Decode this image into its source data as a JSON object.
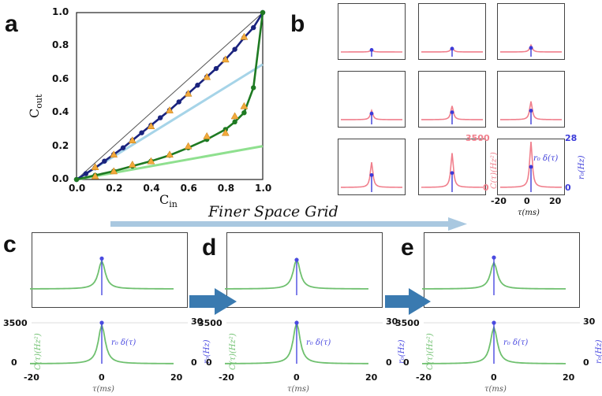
{
  "panel_labels": {
    "a": "a",
    "b": "b",
    "c": "c",
    "d": "d",
    "e": "e"
  },
  "banner": {
    "text": "Finer Space Grid"
  },
  "panel_a": {
    "xlabel": "C",
    "xlabel_sub": "in",
    "ylabel": "C",
    "ylabel_sub": "out",
    "xticks": [
      "0.0",
      "0.2",
      "0.4",
      "0.6",
      "0.8",
      "1.0"
    ],
    "yticks": [
      "0.0",
      "0.2",
      "0.4",
      "0.6",
      "0.8",
      "1.0"
    ],
    "colors": {
      "upper_curve": "#1a237e",
      "upper_tangent": "#a6d4e8",
      "lower_curve": "#1e7a22",
      "lower_tangent": "#8fe08f",
      "diagonal": "#555555",
      "markers": "#f2a93b"
    }
  },
  "panel_b": {
    "left_ticks": [
      "3500",
      "0"
    ],
    "right_ticks": [
      "28",
      "0"
    ],
    "xticks": [
      "-20",
      "0",
      "20"
    ],
    "left_ylabel": "C(τ)(Hz²)",
    "right_ylabel": "r₀(Hz)",
    "xlabel": "τ(ms)",
    "annotation": "r₀ δ(τ)",
    "colors": {
      "correlation": "#f07f8c",
      "delta": "#3b3bd9"
    }
  },
  "panel_cde": {
    "left_ticks": [
      "3500",
      "0"
    ],
    "right_ticks": [
      "30",
      "0"
    ],
    "xticks": [
      "-20",
      "0",
      "20"
    ],
    "left_ylabel": "C(τ)(Hz²)",
    "right_ylabel": "r₀(Hz)",
    "xlabel": "τ(ms)",
    "annotation": "r₀ δ(τ)",
    "colors": {
      "correlation": "#6fc06f",
      "delta": "#4a4ae0"
    }
  },
  "chart_data": [
    {
      "type": "line",
      "panel": "a",
      "xlabel": "Cin",
      "ylabel": "Cout",
      "xlim": [
        0,
        1
      ],
      "ylim": [
        0,
        1
      ],
      "series": [
        {
          "x": [
            0,
            0.05,
            0.1,
            0.15,
            0.2,
            0.25,
            0.3,
            0.35,
            0.4,
            0.45,
            0.5,
            0.55,
            0.6,
            0.65,
            0.7,
            0.75,
            0.8,
            0.85,
            0.9,
            0.95,
            1.0
          ],
          "y": [
            0,
            0.035,
            0.07,
            0.11,
            0.15,
            0.19,
            0.235,
            0.28,
            0.325,
            0.37,
            0.415,
            0.465,
            0.515,
            0.565,
            0.615,
            0.665,
            0.72,
            0.78,
            0.85,
            0.91,
            1.0
          ]
        },
        {
          "x": [
            0,
            0.1,
            0.2,
            0.3,
            0.4,
            0.5,
            0.6,
            0.7,
            0.8,
            0.85,
            0.9,
            0.95,
            1.0
          ],
          "y": [
            0,
            0.025,
            0.05,
            0.08,
            0.11,
            0.145,
            0.19,
            0.24,
            0.3,
            0.345,
            0.4,
            0.55,
            1.0
          ]
        },
        {
          "x": [
            0,
            1
          ],
          "y": [
            0,
            1
          ]
        },
        {
          "x": [
            0,
            1
          ],
          "y": [
            0,
            0.69
          ]
        },
        {
          "x": [
            0,
            1
          ],
          "y": [
            0,
            0.2
          ]
        }
      ],
      "markers_upper_triangle": {
        "x": [
          0.1,
          0.2,
          0.3,
          0.4,
          0.5,
          0.6,
          0.7,
          0.8,
          0.9
        ],
        "y": [
          0.075,
          0.15,
          0.235,
          0.32,
          0.415,
          0.515,
          0.615,
          0.72,
          0.855
        ]
      },
      "markers_lower_triangle": {
        "x": [
          0.1,
          0.2,
          0.3,
          0.4,
          0.5,
          0.6,
          0.7,
          0.8,
          0.85,
          0.9
        ],
        "y": [
          0.02,
          0.05,
          0.09,
          0.11,
          0.15,
          0.2,
          0.26,
          0.28,
          0.38,
          0.44
        ]
      }
    },
    {
      "type": "line",
      "panel": "b",
      "grid": "3x3",
      "peak_heights": [
        0.05,
        0.1,
        0.15,
        0.2,
        0.3,
        0.4,
        0.55,
        0.75,
        1.0
      ],
      "delta_heights": [
        0.05,
        0.08,
        0.1,
        0.15,
        0.18,
        0.22,
        0.3,
        0.35,
        0.5
      ]
    },
    {
      "type": "line",
      "panel": "cde",
      "peak_heights": [
        0.85,
        0.9,
        0.8
      ],
      "delta_dot": [
        0.92,
        0.88,
        0.95
      ]
    }
  ]
}
